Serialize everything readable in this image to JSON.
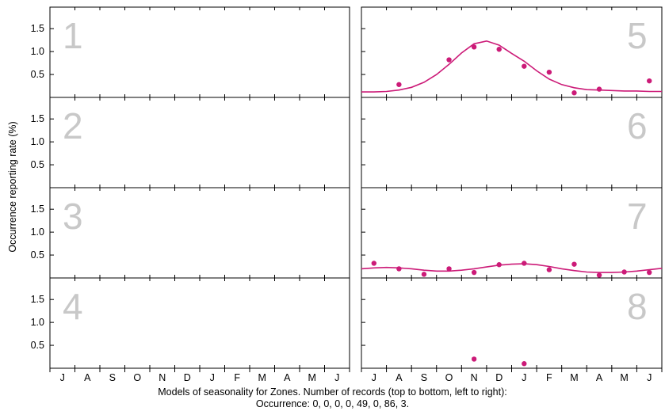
{
  "chart_data": {
    "type": "scatter",
    "ylabel": "Occurrence reporting rate (%)",
    "x_ticks": [
      "J",
      "A",
      "S",
      "O",
      "N",
      "D",
      "J",
      "F",
      "M",
      "A",
      "M",
      "J"
    ],
    "y_ticks": [
      0.5,
      1.0,
      1.5
    ],
    "ylim": [
      0,
      1.97
    ],
    "grid": false,
    "colors": {
      "series": "#cc1b78",
      "panel_number": "#c8c8c8",
      "axis": "#000000"
    },
    "panels": [
      {
        "label": "1",
        "points": [],
        "curve": []
      },
      {
        "label": "2",
        "points": [],
        "curve": []
      },
      {
        "label": "3",
        "points": [],
        "curve": []
      },
      {
        "label": "4",
        "points": [],
        "curve": []
      },
      {
        "label": "5",
        "points": [
          [
            1,
            0.28
          ],
          [
            3,
            0.82
          ],
          [
            4,
            1.1
          ],
          [
            5,
            1.05
          ],
          [
            6,
            0.68
          ],
          [
            7,
            0.55
          ],
          [
            8,
            0.1
          ],
          [
            9,
            0.18
          ],
          [
            11,
            0.36
          ]
        ],
        "curve": [
          [
            -0.5,
            0.12
          ],
          [
            0,
            0.12
          ],
          [
            0.5,
            0.13
          ],
          [
            1,
            0.16
          ],
          [
            1.5,
            0.22
          ],
          [
            2,
            0.33
          ],
          [
            2.5,
            0.5
          ],
          [
            3,
            0.72
          ],
          [
            3.5,
            0.97
          ],
          [
            4,
            1.17
          ],
          [
            4.5,
            1.23
          ],
          [
            5,
            1.14
          ],
          [
            5.5,
            0.96
          ],
          [
            6,
            0.79
          ],
          [
            6.5,
            0.58
          ],
          [
            7,
            0.4
          ],
          [
            7.5,
            0.28
          ],
          [
            8,
            0.21
          ],
          [
            8.5,
            0.17
          ],
          [
            9,
            0.16
          ],
          [
            9.5,
            0.15
          ],
          [
            10,
            0.14
          ],
          [
            10.5,
            0.14
          ],
          [
            11,
            0.13
          ],
          [
            11.5,
            0.13
          ]
        ]
      },
      {
        "label": "6",
        "points": [],
        "curve": []
      },
      {
        "label": "7",
        "points": [
          [
            0,
            0.32
          ],
          [
            1,
            0.2
          ],
          [
            2,
            0.08
          ],
          [
            3,
            0.2
          ],
          [
            4,
            0.12
          ],
          [
            5,
            0.29
          ],
          [
            6,
            0.32
          ],
          [
            7,
            0.18
          ],
          [
            8,
            0.3
          ],
          [
            9,
            0.06
          ],
          [
            10,
            0.13
          ],
          [
            11,
            0.12
          ]
        ],
        "curve": [
          [
            -0.5,
            0.2
          ],
          [
            0,
            0.22
          ],
          [
            0.5,
            0.23
          ],
          [
            1,
            0.22
          ],
          [
            1.5,
            0.2
          ],
          [
            2,
            0.17
          ],
          [
            2.5,
            0.15
          ],
          [
            3,
            0.15
          ],
          [
            3.5,
            0.17
          ],
          [
            4,
            0.2
          ],
          [
            4.5,
            0.24
          ],
          [
            5,
            0.28
          ],
          [
            5.5,
            0.3
          ],
          [
            6,
            0.31
          ],
          [
            6.5,
            0.29
          ],
          [
            7,
            0.25
          ],
          [
            7.5,
            0.2
          ],
          [
            8,
            0.16
          ],
          [
            8.5,
            0.13
          ],
          [
            9,
            0.12
          ],
          [
            9.5,
            0.12
          ],
          [
            10,
            0.13
          ],
          [
            10.5,
            0.15
          ],
          [
            11,
            0.18
          ],
          [
            11.5,
            0.21
          ]
        ]
      },
      {
        "label": "8",
        "points": [
          [
            4,
            0.2
          ],
          [
            6,
            0.1
          ]
        ],
        "curve": []
      }
    ]
  },
  "caption": {
    "line1": "Models of seasonality for Zones. Number of records (top to bottom, left to right):",
    "line2": "Occurrence: 0, 0, 0, 0, 49, 0, 86, 3."
  }
}
